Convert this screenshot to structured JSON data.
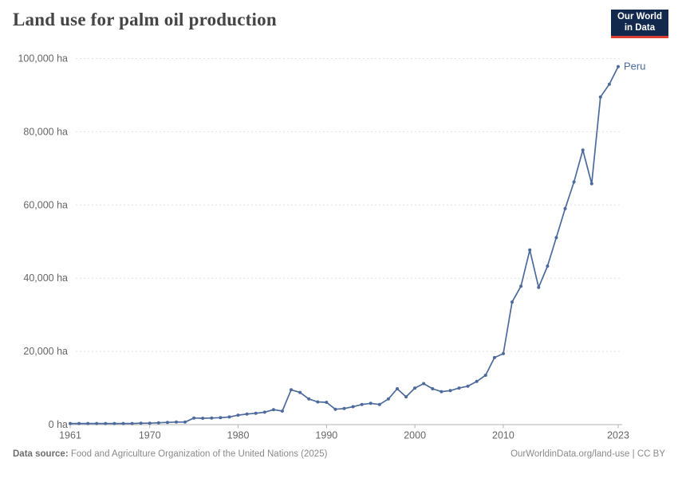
{
  "header": {
    "title": "Land use for palm oil production"
  },
  "logo": {
    "line1": "Our World",
    "line2": "in Data",
    "bg_color": "#12294d",
    "accent_color": "#dc3e32"
  },
  "chart_data": {
    "type": "line",
    "title": "Land use for palm oil production",
    "unit": "ha",
    "xlim": [
      1961,
      2023
    ],
    "ylim": [
      0,
      100000
    ],
    "x_ticks": [
      1961,
      1970,
      1980,
      1990,
      2000,
      2010,
      2023
    ],
    "y_ticks": [
      0,
      20000,
      40000,
      60000,
      80000,
      100000
    ],
    "y_tick_suffix": " ha",
    "grid": "dashed-horizontal",
    "legend_position": "end-of-line-label",
    "series": [
      {
        "name": "Peru",
        "color": "#4C6A9C",
        "years": [
          1961,
          1962,
          1963,
          1964,
          1965,
          1966,
          1967,
          1968,
          1969,
          1970,
          1971,
          1972,
          1973,
          1974,
          1975,
          1976,
          1977,
          1978,
          1979,
          1980,
          1981,
          1982,
          1983,
          1984,
          1985,
          1986,
          1987,
          1988,
          1989,
          1990,
          1991,
          1992,
          1993,
          1994,
          1995,
          1996,
          1997,
          1998,
          1999,
          2000,
          2001,
          2002,
          2003,
          2004,
          2005,
          2006,
          2007,
          2008,
          2009,
          2010,
          2011,
          2012,
          2013,
          2014,
          2015,
          2016,
          2017,
          2018,
          2019,
          2020,
          2021,
          2022,
          2023
        ],
        "values": [
          300,
          300,
          300,
          300,
          300,
          300,
          300,
          300,
          400,
          400,
          500,
          600,
          700,
          700,
          1800,
          1750,
          1800,
          1900,
          2100,
          2600,
          2900,
          3100,
          3400,
          4100,
          3700,
          9500,
          8800,
          7000,
          6200,
          6100,
          4200,
          4400,
          4900,
          5500,
          5800,
          5500,
          7000,
          9800,
          7600,
          10000,
          11200,
          9800,
          9000,
          9300,
          10000,
          10500,
          11800,
          13500,
          18300,
          19400,
          33500,
          37800,
          47700,
          37500,
          43300,
          51100,
          59000,
          66300,
          75000,
          65800,
          89500,
          93000,
          97800
        ]
      }
    ],
    "colors": {
      "grid": "#e0e0e0",
      "axis": "#b3b3b3",
      "tick_label": "#666666"
    }
  },
  "footer": {
    "source_label": "Data source:",
    "source_text": " Food and Agriculture Organization of the United Nations (2025)",
    "link_text": "OurWorldinData.org/land-use",
    "separator": " | ",
    "license_text": "CC BY"
  }
}
